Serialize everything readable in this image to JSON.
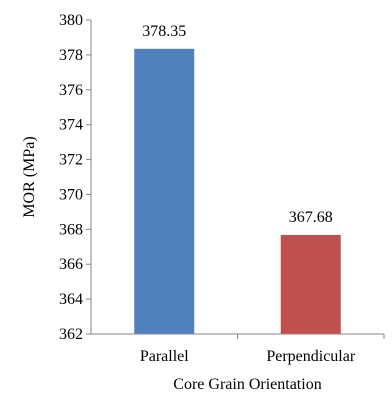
{
  "chart_data": {
    "type": "bar",
    "categories": [
      "Parallel",
      "Perpendicular"
    ],
    "values": [
      378.35,
      367.68
    ],
    "data_labels": [
      "378.35",
      "367.68"
    ],
    "bar_colors": [
      "#4f81bd",
      "#c0504d"
    ],
    "xlabel": "Core Grain Orientation",
    "ylabel": "MOR (MPa)",
    "ylim": [
      362,
      380
    ],
    "yticks": [
      362,
      364,
      366,
      368,
      370,
      372,
      374,
      376,
      378,
      380
    ],
    "grid": false,
    "legend": "none"
  }
}
